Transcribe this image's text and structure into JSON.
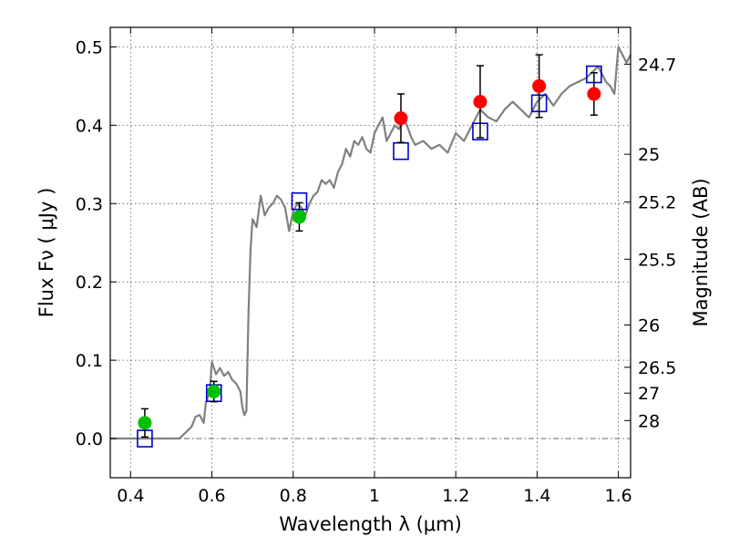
{
  "chart_data": {
    "type": "scatter",
    "xlabel": "Wavelength  λ (μm)",
    "ylabel": "Flux  Fν  ( μJy )",
    "y2label": "Magnitude (AB)",
    "xlim": [
      0.35,
      1.63
    ],
    "ylim": [
      -0.05,
      0.525
    ],
    "x_ticks": [
      {
        "value": 0.4,
        "label": "0.4"
      },
      {
        "value": 0.6,
        "label": "0.6"
      },
      {
        "value": 0.8,
        "label": "0.8"
      },
      {
        "value": 1.0,
        "label": "1"
      },
      {
        "value": 1.2,
        "label": "1.2"
      },
      {
        "value": 1.4,
        "label": "1.4"
      },
      {
        "value": 1.6,
        "label": "1.6"
      }
    ],
    "y_ticks": [
      {
        "value": 0.0,
        "label": "0.0"
      },
      {
        "value": 0.1,
        "label": "0.1"
      },
      {
        "value": 0.2,
        "label": "0.2"
      },
      {
        "value": 0.3,
        "label": "0.3"
      },
      {
        "value": 0.4,
        "label": "0.4"
      },
      {
        "value": 0.5,
        "label": "0.5"
      }
    ],
    "y2_ticks": [
      {
        "flux": 0.478,
        "label": "24.7"
      },
      {
        "flux": 0.363,
        "label": "25"
      },
      {
        "flux": 0.302,
        "label": "25.2"
      },
      {
        "flux": 0.229,
        "label": "25.5"
      },
      {
        "flux": 0.145,
        "label": "26"
      },
      {
        "flux": 0.091,
        "label": "26.5"
      },
      {
        "flux": 0.058,
        "label": "27"
      },
      {
        "flux": 0.023,
        "label": "28"
      }
    ],
    "grid": true,
    "colors": {
      "model": "#808080",
      "green": "#00c000",
      "red": "#ff0000",
      "box": "#0000cc"
    },
    "model_spectrum": {
      "x": [
        0.35,
        0.4,
        0.45,
        0.5,
        0.52,
        0.55,
        0.56,
        0.57,
        0.58,
        0.585,
        0.595,
        0.6,
        0.605,
        0.61,
        0.62,
        0.63,
        0.64,
        0.65,
        0.66,
        0.67,
        0.675,
        0.68,
        0.685,
        0.69,
        0.695,
        0.7,
        0.705,
        0.71,
        0.72,
        0.73,
        0.74,
        0.75,
        0.76,
        0.77,
        0.78,
        0.79,
        0.8,
        0.81,
        0.82,
        0.83,
        0.84,
        0.85,
        0.86,
        0.87,
        0.88,
        0.89,
        0.9,
        0.91,
        0.92,
        0.93,
        0.94,
        0.95,
        0.96,
        0.97,
        0.98,
        0.99,
        1.0,
        1.01,
        1.02,
        1.03,
        1.04,
        1.05,
        1.06,
        1.07,
        1.08,
        1.09,
        1.1,
        1.12,
        1.14,
        1.16,
        1.18,
        1.2,
        1.22,
        1.24,
        1.26,
        1.28,
        1.3,
        1.32,
        1.34,
        1.36,
        1.38,
        1.4,
        1.42,
        1.44,
        1.46,
        1.48,
        1.5,
        1.52,
        1.54,
        1.55,
        1.56,
        1.57,
        1.58,
        1.59,
        1.6,
        1.61,
        1.62,
        1.63
      ],
      "y": [
        0.0,
        0.0,
        0.0,
        0.0,
        0.0,
        0.015,
        0.028,
        0.03,
        0.02,
        0.045,
        0.06,
        0.098,
        0.09,
        0.082,
        0.09,
        0.08,
        0.085,
        0.075,
        0.07,
        0.06,
        0.04,
        0.03,
        0.035,
        0.16,
        0.24,
        0.28,
        0.275,
        0.27,
        0.31,
        0.285,
        0.295,
        0.3,
        0.31,
        0.305,
        0.295,
        0.265,
        0.29,
        0.3,
        0.295,
        0.285,
        0.3,
        0.31,
        0.315,
        0.33,
        0.325,
        0.33,
        0.32,
        0.34,
        0.35,
        0.37,
        0.36,
        0.38,
        0.375,
        0.385,
        0.37,
        0.365,
        0.39,
        0.4,
        0.41,
        0.38,
        0.39,
        0.4,
        0.395,
        0.41,
        0.4,
        0.385,
        0.375,
        0.38,
        0.37,
        0.375,
        0.365,
        0.39,
        0.38,
        0.4,
        0.42,
        0.41,
        0.405,
        0.42,
        0.43,
        0.42,
        0.41,
        0.43,
        0.44,
        0.425,
        0.44,
        0.45,
        0.455,
        0.46,
        0.47,
        0.475,
        0.465,
        0.455,
        0.45,
        0.44,
        0.5,
        0.49,
        0.48,
        0.49
      ]
    },
    "model_points": [
      {
        "x": 0.435,
        "y": 0.0
      },
      {
        "x": 0.605,
        "y": 0.058
      },
      {
        "x": 0.815,
        "y": 0.303
      },
      {
        "x": 1.065,
        "y": 0.367
      },
      {
        "x": 1.26,
        "y": 0.392
      },
      {
        "x": 1.405,
        "y": 0.428
      },
      {
        "x": 1.54,
        "y": 0.465
      }
    ],
    "photometry_green": [
      {
        "x": 0.435,
        "y": 0.02,
        "err_low": 0.018,
        "err_high": 0.018
      },
      {
        "x": 0.605,
        "y": 0.06,
        "err_low": 0.013,
        "err_high": 0.013
      },
      {
        "x": 0.815,
        "y": 0.283,
        "err_low": 0.018,
        "err_high": 0.018
      }
    ],
    "photometry_red": [
      {
        "x": 1.065,
        "y": 0.409,
        "err_low": 0.031,
        "err_high": 0.031
      },
      {
        "x": 1.26,
        "y": 0.43,
        "err_low": 0.046,
        "err_high": 0.046
      },
      {
        "x": 1.405,
        "y": 0.45,
        "err_low": 0.04,
        "err_high": 0.04
      },
      {
        "x": 1.54,
        "y": 0.44,
        "err_low": 0.027,
        "err_high": 0.027
      }
    ]
  }
}
